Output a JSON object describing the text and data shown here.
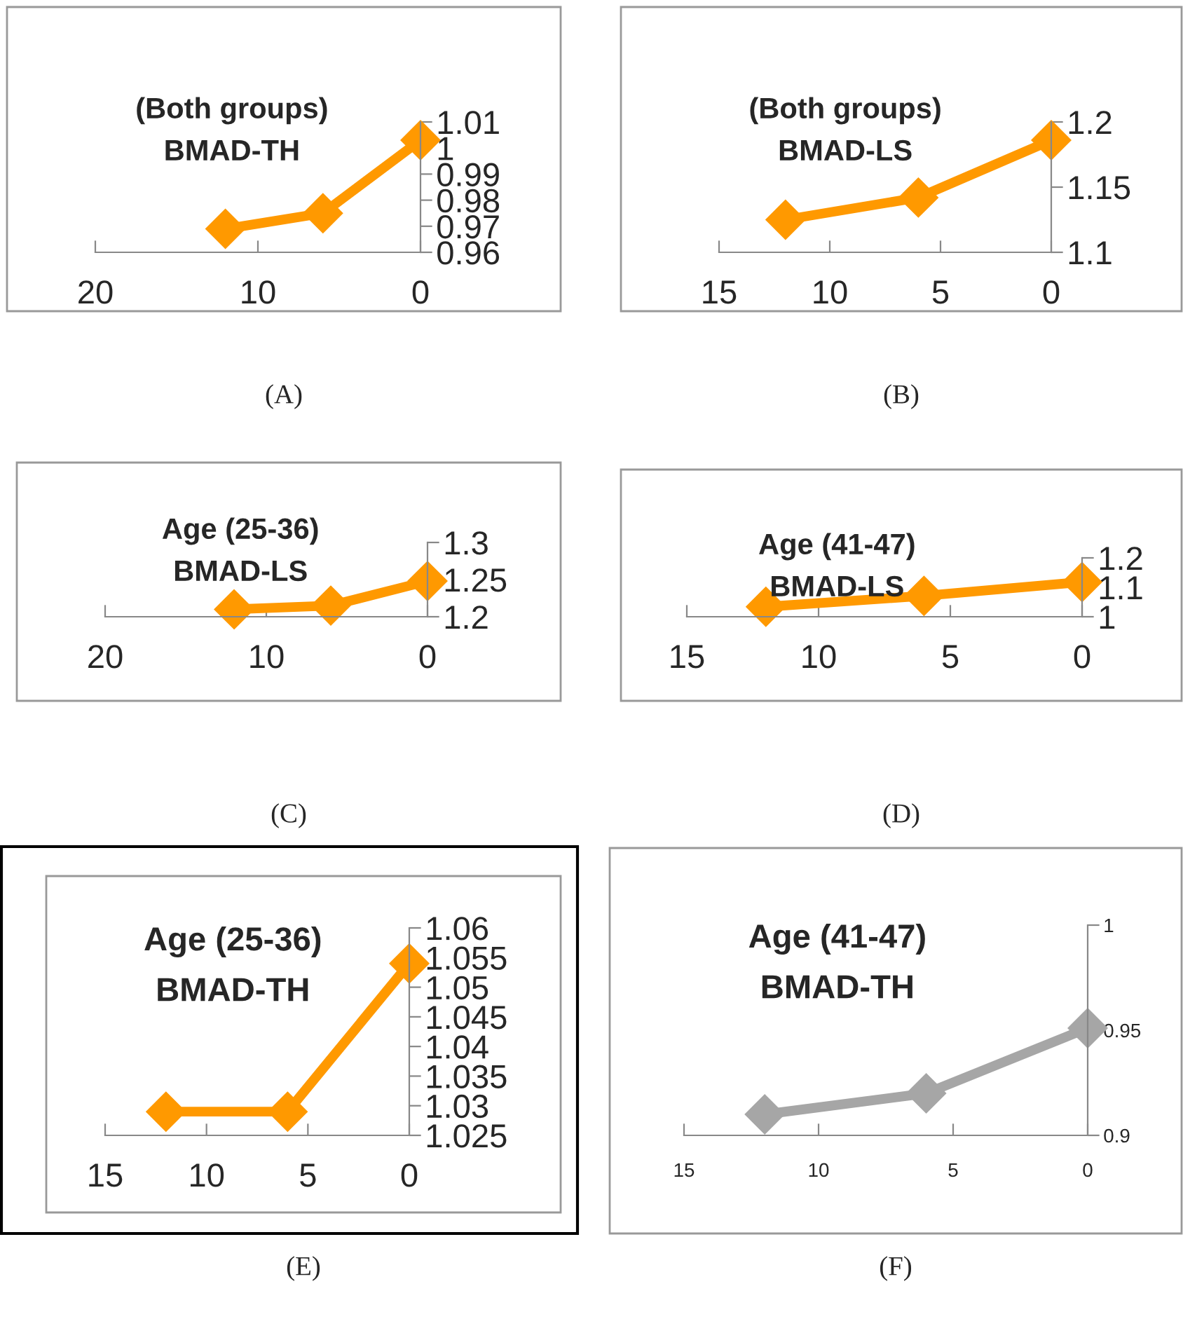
{
  "chart_data": [
    {
      "type": "line",
      "title": "(Both groups)",
      "subtitle": "BMAD-TH",
      "x": [
        12,
        6,
        0
      ],
      "series": [
        {
          "color": "#ff9900",
          "values": [
            0.969,
            0.975,
            1.003
          ]
        }
      ],
      "marker": "diamond",
      "xlim": [
        20,
        0
      ],
      "xticks": [
        20,
        10,
        0
      ],
      "ylim": [
        0.96,
        1.01
      ],
      "yticks": [
        0.96,
        0.97,
        0.98,
        0.99,
        1,
        1.01
      ],
      "annotations": [
        "(A)"
      ]
    },
    {
      "type": "line",
      "title": "(Both groups)",
      "subtitle": "BMAD-LS",
      "x": [
        12,
        6,
        0
      ],
      "series": [
        {
          "color": "#ff9900",
          "values": [
            1.125,
            1.142,
            1.186
          ]
        }
      ],
      "marker": "diamond",
      "xlim": [
        15,
        0
      ],
      "xticks": [
        15,
        10,
        5,
        0
      ],
      "ylim": [
        1.1,
        1.2
      ],
      "yticks": [
        1.1,
        1.15,
        1.2
      ],
      "annotations": [
        "(B)"
      ]
    },
    {
      "type": "line",
      "title": "Age (25-36)",
      "subtitle": "BMAD-LS",
      "x": [
        12,
        6,
        0
      ],
      "series": [
        {
          "color": "#ff9900",
          "values": [
            1.21,
            1.215,
            1.248
          ]
        }
      ],
      "marker": "diamond",
      "xlim": [
        20,
        0
      ],
      "xticks": [
        20,
        10,
        0
      ],
      "ylim": [
        1.2,
        1.3
      ],
      "yticks": [
        1.2,
        1.25,
        1.3
      ],
      "annotations": [
        "(C)"
      ]
    },
    {
      "type": "line",
      "title": "Age (41-47)",
      "subtitle": "BMAD-LS",
      "x": [
        12,
        6,
        0
      ],
      "series": [
        {
          "color": "#ff9900",
          "values": [
            1.034,
            1.071,
            1.118
          ]
        }
      ],
      "marker": "diamond",
      "xlim": [
        15,
        0
      ],
      "xticks": [
        15,
        10,
        5,
        0
      ],
      "ylim": [
        1,
        1.2
      ],
      "yticks": [
        1,
        1.1,
        1.2
      ],
      "annotations": [
        "(D)"
      ]
    },
    {
      "type": "line",
      "title": "Age (25-36)",
      "subtitle": "BMAD-TH",
      "x": [
        12,
        6,
        0
      ],
      "series": [
        {
          "color": "#ff9900",
          "values": [
            1.029,
            1.029,
            1.054
          ]
        }
      ],
      "marker": "diamond",
      "xlim": [
        15,
        0
      ],
      "xticks": [
        15,
        10,
        5,
        0
      ],
      "ylim": [
        1.025,
        1.06
      ],
      "yticks": [
        1.025,
        1.03,
        1.035,
        1.04,
        1.045,
        1.05,
        1.055,
        1.06
      ],
      "annotations": [
        "(E)"
      ]
    },
    {
      "type": "line",
      "title": "Age (41-47)",
      "subtitle": "BMAD-TH",
      "x": [
        12,
        6,
        0
      ],
      "series": [
        {
          "color": "#a6a6a6",
          "values": [
            0.91,
            0.92,
            0.951
          ]
        }
      ],
      "marker": "diamond",
      "xlim": [
        15,
        0
      ],
      "xticks": [
        15,
        10,
        5,
        0
      ],
      "ylim": [
        0.9,
        1
      ],
      "yticks": [
        0.9,
        0.95,
        1
      ],
      "annotations": [
        "(F)"
      ]
    }
  ]
}
